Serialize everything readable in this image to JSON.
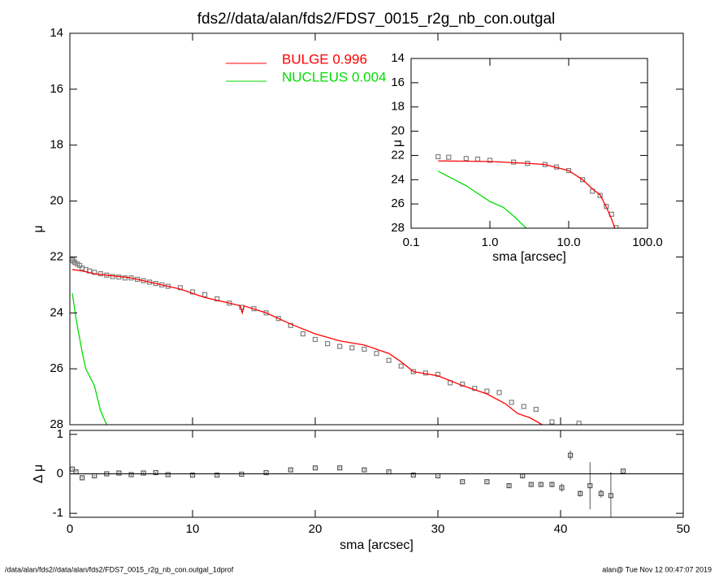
{
  "chart_data": [
    {
      "type": "line",
      "title": "fds2//data/alan/fds2/FDS7_0015_r2g_nb_con.outgal",
      "y_label": "μ",
      "xlim": [
        0,
        50
      ],
      "ylim": [
        28,
        14
      ],
      "yticks": [
        14,
        16,
        18,
        20,
        22,
        24,
        26,
        28
      ],
      "series": [
        {
          "style": "markers",
          "color": "#808080",
          "x": [
            0.2,
            0.3,
            0.4,
            0.6,
            0.8,
            1,
            1.3,
            1.6,
            2,
            2.5,
            3,
            3.5,
            4,
            4.5,
            5,
            5.5,
            6,
            6.5,
            7,
            7.5,
            8,
            9,
            10,
            11,
            12,
            13,
            14,
            15,
            16,
            17,
            18,
            19,
            20,
            21,
            22,
            23,
            24,
            25,
            26,
            27,
            28,
            29,
            30,
            31,
            32,
            33,
            34,
            35,
            36,
            37,
            38,
            39.3,
            41.5
          ],
          "values": [
            22.1,
            22.15,
            22.2,
            22.25,
            22.3,
            22.4,
            22.45,
            22.5,
            22.55,
            22.6,
            22.65,
            22.7,
            22.72,
            22.75,
            22.75,
            22.8,
            22.85,
            22.9,
            22.95,
            23.0,
            23.05,
            23.1,
            23.25,
            23.35,
            23.5,
            23.65,
            23.8,
            23.85,
            24.0,
            24.2,
            24.45,
            24.75,
            24.95,
            25.1,
            25.2,
            25.25,
            25.3,
            25.45,
            25.7,
            25.9,
            26.1,
            26.15,
            26.2,
            26.5,
            26.55,
            26.7,
            26.8,
            26.85,
            27.2,
            27.35,
            27.45,
            27.9,
            27.95
          ]
        },
        {
          "style": "line",
          "name": "BULGE  0.996",
          "color": "#ff0000",
          "x": [
            0.2,
            1,
            2,
            3,
            5,
            7,
            9,
            11,
            13,
            13.9,
            14.05,
            14.2,
            16,
            18,
            20,
            22,
            24,
            26,
            27,
            28,
            30,
            32,
            34,
            35.5,
            36.5,
            37.5,
            38.5
          ],
          "values": [
            22.45,
            22.5,
            22.6,
            22.65,
            22.75,
            22.95,
            23.15,
            23.45,
            23.65,
            23.75,
            24.0,
            23.75,
            24.0,
            24.4,
            24.75,
            25.0,
            25.15,
            25.45,
            25.75,
            26.1,
            26.25,
            26.6,
            26.9,
            27.25,
            27.6,
            27.75,
            28.0
          ]
        },
        {
          "style": "line",
          "name": "NUCLEUS  0.004",
          "color": "#00dd00",
          "x": [
            0.2,
            0.5,
            1,
            1.3,
            2,
            2.5,
            3
          ],
          "values": [
            23.3,
            24.2,
            25.4,
            26.0,
            26.6,
            27.5,
            28.0
          ]
        }
      ]
    },
    {
      "type": "line",
      "x_label": "sma [arcsec]",
      "y_label": "μ",
      "xlog": true,
      "xlim": [
        0.1,
        100
      ],
      "ylim": [
        28,
        14
      ],
      "yticks": [
        14,
        16,
        18,
        20,
        22,
        24,
        26,
        28
      ],
      "xticks": [
        0.1,
        {
          "value": 1,
          "label": "1.0"
        },
        {
          "value": 10,
          "label": "10.0"
        },
        {
          "value": 100,
          "label": "100.0"
        }
      ],
      "series": [
        {
          "style": "markers",
          "color": "#808080",
          "x": [
            0.22,
            0.3,
            0.5,
            0.7,
            1,
            2,
            3,
            5,
            7,
            10,
            15,
            20,
            25,
            30,
            35,
            40
          ],
          "values": [
            22.1,
            22.15,
            22.25,
            22.3,
            22.4,
            22.55,
            22.65,
            22.75,
            22.95,
            23.25,
            24.0,
            24.95,
            25.3,
            26.2,
            26.85,
            27.95
          ]
        },
        {
          "style": "line",
          "color": "#ff0000",
          "x": [
            0.22,
            1,
            3,
            5,
            10,
            15,
            20,
            25,
            30,
            35,
            38.5
          ],
          "values": [
            22.45,
            22.5,
            22.65,
            22.75,
            23.25,
            24.0,
            24.75,
            25.25,
            26.25,
            27.25,
            28.0
          ]
        },
        {
          "style": "line",
          "color": "#00dd00",
          "x": [
            0.22,
            0.5,
            1,
            1.5,
            2,
            2.9
          ],
          "values": [
            23.3,
            24.5,
            25.8,
            26.3,
            27.0,
            28.0
          ]
        }
      ]
    },
    {
      "type": "errorbar",
      "x_label": "sma [arcsec]",
      "y_label": "Δ μ",
      "xlim": [
        0,
        50
      ],
      "ylim": [
        -1.1,
        1.1
      ],
      "yticks": [
        1,
        0,
        -1
      ],
      "xticks": [
        0,
        10,
        20,
        30,
        40,
        50
      ],
      "zero_line": true,
      "series": [
        {
          "style": "markers",
          "color": "#555555",
          "x": [
            0.2,
            0.5,
            1,
            2,
            3,
            4,
            5,
            6,
            7,
            8,
            10,
            12,
            14,
            16,
            18,
            20,
            22,
            24,
            26,
            28,
            30,
            32,
            34,
            35.8,
            36.9,
            37.6,
            38.4,
            39.3,
            40.1,
            40.8,
            41.6,
            42.4,
            43.3,
            44.1,
            45.1
          ],
          "values": [
            0.12,
            0.05,
            -0.1,
            -0.05,
            0,
            0.02,
            -0.02,
            0.02,
            0.03,
            -0.02,
            -0.03,
            -0.03,
            -0.01,
            0.03,
            0.1,
            0.15,
            0.15,
            0.1,
            0.05,
            -0.03,
            -0.05,
            -0.2,
            -0.2,
            -0.3,
            -0.05,
            -0.27,
            -0.27,
            -0.27,
            -0.35,
            0.47,
            -0.5,
            -0.3,
            -0.5,
            -0.55,
            0.07
          ],
          "errors": [
            0.02,
            0.02,
            0.02,
            0.02,
            0.02,
            0.02,
            0.02,
            0.02,
            0.02,
            0.02,
            0.02,
            0.02,
            0.02,
            0.02,
            0.02,
            0.02,
            0.02,
            0.02,
            0.02,
            0.02,
            0.02,
            0.02,
            0.02,
            0.05,
            0.05,
            0.05,
            0.05,
            0.07,
            0.1,
            0.12,
            0.08,
            0.6,
            0.1,
            0.6,
            0.02
          ]
        }
      ]
    }
  ],
  "footer": {
    "left": "/data/alan/fds2//data/alan/fds2/FDS7_0015_r2g_nb_con.outgal_1dprof",
    "right": "alan@  Tue Nov 12 00:47:07 2019"
  }
}
